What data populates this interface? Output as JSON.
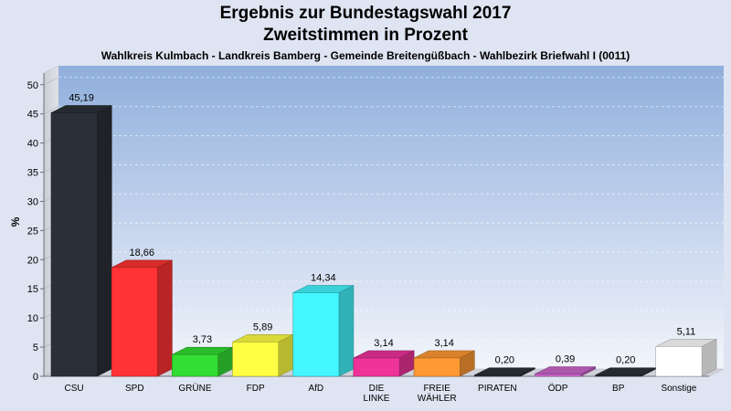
{
  "header": {
    "title": "Ergebnis zur Bundestagswahl 2017",
    "subtitle": "Zweitstimmen in Prozent",
    "caption": "Wahlkreis Kulmbach - Landkreis Bamberg - Gemeinde Breitengüßbach - Wahlbezirk Briefwahl I (0011)"
  },
  "chart_data": {
    "type": "bar",
    "title": "Ergebnis zur Bundestagswahl 2017",
    "subtitle": "Zweitstimmen in Prozent",
    "ylabel": "%",
    "xlabel": "",
    "ylim": [
      0,
      52
    ],
    "yticks": [
      0,
      5,
      10,
      15,
      20,
      25,
      30,
      35,
      40,
      45,
      50
    ],
    "grid": true,
    "categories": [
      "CSU",
      "SPD",
      "GRÜNE",
      "FDP",
      "AfD",
      "DIE LINKE",
      "FREIE WÄHLER",
      "PIRATEN",
      "ÖDP",
      "BP",
      "Sonstige"
    ],
    "category_lines": [
      [
        "CSU"
      ],
      [
        "SPD"
      ],
      [
        "GRÜNE"
      ],
      [
        "FDP"
      ],
      [
        "AfD"
      ],
      [
        "DIE",
        "LINKE"
      ],
      [
        "FREIE",
        "WÄHLER"
      ],
      [
        "PIRATEN"
      ],
      [
        "ÖDP"
      ],
      [
        "BP"
      ],
      [
        "Sonstige"
      ]
    ],
    "values": [
      45.19,
      18.66,
      3.73,
      5.89,
      14.34,
      3.14,
      3.14,
      0.2,
      0.39,
      0.2,
      5.11
    ],
    "value_labels": [
      "45,19",
      "18,66",
      "3,73",
      "5,89",
      "14,34",
      "3,14",
      "3,14",
      "0,20",
      "0,39",
      "0,20",
      "5,11"
    ],
    "colors": [
      "#2b3038",
      "#ff3333",
      "#33dd33",
      "#ffff44",
      "#44f6ff",
      "#ee3399",
      "#ff9933",
      "#2b3038",
      "#cc66cc",
      "#2b3038",
      "#ffffff"
    ]
  }
}
